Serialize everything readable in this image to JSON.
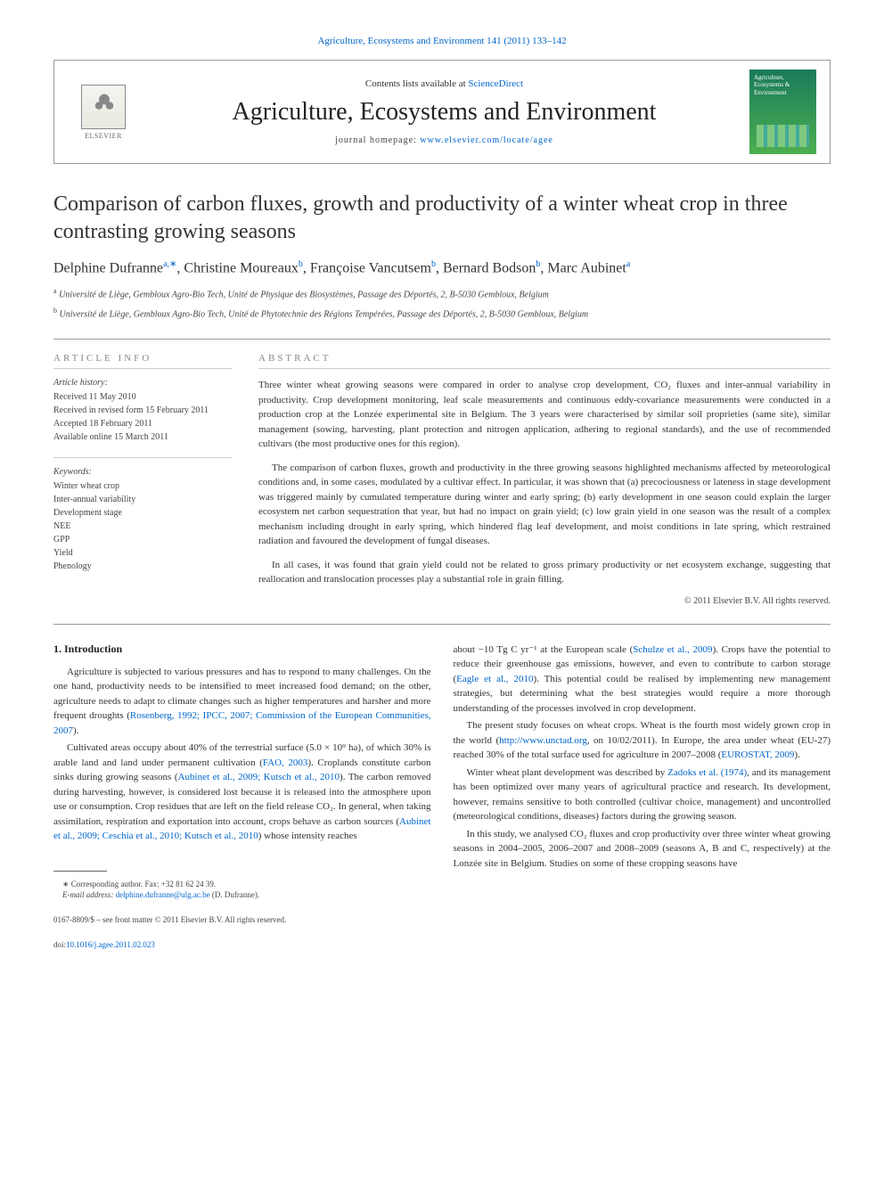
{
  "header_citation": "Agriculture, Ecosystems and Environment 141 (2011) 133–142",
  "masthead": {
    "contents_prefix": "Contents lists available at ",
    "contents_link": "ScienceDirect",
    "journal_title": "Agriculture, Ecosystems and Environment",
    "homepage_prefix": "journal homepage: ",
    "homepage_link": "www.elsevier.com/locate/agee",
    "publisher_label": "ELSEVIER",
    "cover_label": "Agriculture, Ecosystems & Environment"
  },
  "article": {
    "title": "Comparison of carbon fluxes, growth and productivity of a winter wheat crop in three contrasting growing seasons",
    "authors_html": "Delphine Dufranne",
    "author1": "Delphine Dufranne",
    "aff1": "a,",
    "author2": ", Christine Moureaux",
    "aff2": "b",
    "author3": ", Françoise Vancutsem",
    "aff3": "b",
    "author4": ", Bernard Bodson",
    "aff4": "b",
    "author5": ", Marc Aubinet",
    "aff5": "a",
    "affiliation_a": "Université de Liège, Gembloux Agro-Bio Tech, Unité de Physique des Biosystèmes, Passage des Déportés, 2, B-5030 Gembloux, Belgium",
    "affiliation_b": "Université de Liège, Gembloux Agro-Bio Tech, Unité de Phytotechnie des Régions Tempérées, Passage des Déportés, 2, B-5030 Gembloux, Belgium"
  },
  "info": {
    "label": "article info",
    "history_label": "Article history:",
    "history": [
      "Received 11 May 2010",
      "Received in revised form 15 February 2011",
      "Accepted 18 February 2011",
      "Available online 15 March 2011"
    ],
    "keywords_label": "Keywords:",
    "keywords": [
      "Winter wheat crop",
      "Inter-annual variability",
      "Development stage",
      "NEE",
      "GPP",
      "Yield",
      "Phenology"
    ]
  },
  "abstract": {
    "label": "abstract",
    "p1": "Three winter wheat growing seasons were compared in order to analyse crop development, CO₂ fluxes and inter-annual variability in productivity. Crop development monitoring, leaf scale measurements and continuous eddy-covariance measurements were conducted in a production crop at the Lonzée experimental site in Belgium. The 3 years were characterised by similar soil proprieties (same site), similar management (sowing, harvesting, plant protection and nitrogen application, adhering to regional standards), and the use of recommended cultivars (the most productive ones for this region).",
    "p2": "The comparison of carbon fluxes, growth and productivity in the three growing seasons highlighted mechanisms affected by meteorological conditions and, in some cases, modulated by a cultivar effect. In particular, it was shown that (a) precociousness or lateness in stage development was triggered mainly by cumulated temperature during winter and early spring; (b) early development in one season could explain the larger ecosystem net carbon sequestration that year, but had no impact on grain yield; (c) low grain yield in one season was the result of a complex mechanism including drought in early spring, which hindered flag leaf development, and moist conditions in late spring, which restrained radiation and favoured the development of fungal diseases.",
    "p3": "In all cases, it was found that grain yield could not be related to gross primary productivity or net ecosystem exchange, suggesting that reallocation and translocation processes play a substantial role in grain filling.",
    "copyright": "© 2011 Elsevier B.V. All rights reserved."
  },
  "body": {
    "section1_heading": "1. Introduction",
    "left": {
      "p1_a": "Agriculture is subjected to various pressures and has to respond to many challenges. On the one hand, productivity needs to be intensified to meet increased food demand; on the other, agriculture needs to adapt to climate changes such as higher temperatures and harsher and more frequent droughts (",
      "p1_link": "Rosenberg, 1992; IPCC, 2007; Commission of the European Communities, 2007",
      "p1_b": ").",
      "p2_a": "Cultivated areas occupy about 40% of the terrestrial surface (5.0 × 10⁹ ha), of which 30% is arable land and land under permanent cultivation (",
      "p2_link1": "FAO, 2003",
      "p2_b": "). Croplands constitute carbon sinks during growing seasons (",
      "p2_link2": "Aubinet et al., 2009; Kutsch et al., 2010",
      "p2_c": "). The carbon removed during harvesting, however, is considered lost because it is released into the atmosphere upon use or consumption. Crop residues that are left on the field release CO₂. In general, when taking assimilation, respiration and exportation into account, crops behave as carbon sources (",
      "p2_link3": "Aubinet et al., 2009; Ceschia et al., 2010; Kutsch et al., 2010",
      "p2_d": ") whose intensity reaches"
    },
    "right": {
      "p1_a": "about −10 Tg C yr⁻¹ at the European scale (",
      "p1_link1": "Schulze et al., 2009",
      "p1_b": "). Crops have the potential to reduce their greenhouse gas emissions, however, and even to contribute to carbon storage (",
      "p1_link2": "Eagle et al., 2010",
      "p1_c": "). This potential could be realised by implementing new management strategies, but determining what the best strategies would require a more thorough understanding of the processes involved in crop development.",
      "p2_a": "The present study focuses on wheat crops. Wheat is the fourth most widely grown crop in the world (",
      "p2_link1": "http://www.unctad.org",
      "p2_b": ", on 10/02/2011). In Europe, the area under wheat (EU-27) reached 30% of the total surface used for agriculture in 2007–2008 (",
      "p2_link2": "EUROSTAT, 2009",
      "p2_c": ").",
      "p3_a": "Winter wheat plant development was described by ",
      "p3_link1": "Zadoks et al. (1974)",
      "p3_b": ", and its management has been optimized over many years of agricultural practice and research. Its development, however, remains sensitive to both controlled (cultivar choice, management) and uncontrolled (meteorological conditions, diseases) factors during the growing season.",
      "p4": "In this study, we analysed CO₂ fluxes and crop productivity over three winter wheat growing seasons in 2004–2005, 2006–2007 and 2008–2009 (seasons A, B and C, respectively) at the Lonzée site in Belgium. Studies on some of these cropping seasons have"
    }
  },
  "footnotes": {
    "corr": "∗ Corresponding author. Fax: +32 81 62 24 39.",
    "email_label": "E-mail address: ",
    "email": "delphine.dufranne@ulg.ac.be",
    "email_suffix": " (D. Dufranne)."
  },
  "footer": {
    "line1": "0167-8809/$ – see front matter © 2011 Elsevier B.V. All rights reserved.",
    "doi_prefix": "doi:",
    "doi": "10.1016/j.agee.2011.02.023"
  },
  "styling": {
    "page_bg": "#ffffff",
    "text_color": "#333333",
    "link_color": "#0066cc",
    "title_fontsize": 24,
    "journal_title_fontsize": 28,
    "body_fontsize": 11,
    "abstract_fontsize": 11,
    "footnote_fontsize": 9,
    "author_fontsize": 16,
    "affiliation_fontsize": 10
  }
}
